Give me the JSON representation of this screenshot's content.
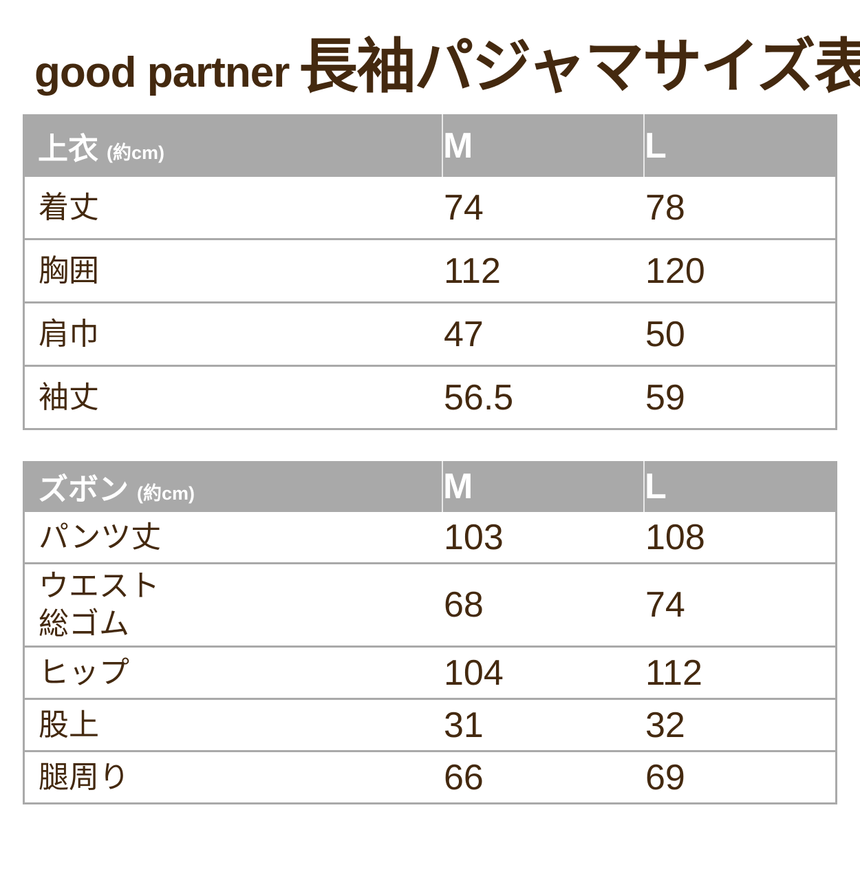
{
  "title": {
    "brand": "good partner",
    "product": "長袖パジャマサイズ表"
  },
  "colors": {
    "text_brown": "#44290f",
    "header_gray": "#a9a9a9",
    "border_gray": "#a9a9a9",
    "row_background": "#ffffff",
    "header_text": "#ffffff"
  },
  "tables": [
    {
      "name": "top-garment",
      "header": {
        "label": "上衣",
        "unit": "(約cm)",
        "col_m": "M",
        "col_l": "L"
      },
      "rows": [
        {
          "label": "着丈",
          "m": "74",
          "l": "78"
        },
        {
          "label": "胸囲",
          "m": "112",
          "l": "120"
        },
        {
          "label": "肩巾",
          "m": "47",
          "l": "50"
        },
        {
          "label": "袖丈",
          "m": "56.5",
          "l": "59"
        }
      ]
    },
    {
      "name": "pants",
      "header": {
        "label": "ズボン",
        "unit": "(約cm)",
        "col_m": "M",
        "col_l": "L"
      },
      "rows": [
        {
          "label": "パンツ丈",
          "m": "103",
          "l": "108"
        },
        {
          "label": "ウエスト\n総ゴム",
          "m": "68",
          "l": "74"
        },
        {
          "label": "ヒップ",
          "m": "104",
          "l": "112"
        },
        {
          "label": "股上",
          "m": "31",
          "l": "32"
        },
        {
          "label": "腿周り",
          "m": "66",
          "l": "69"
        }
      ]
    }
  ]
}
